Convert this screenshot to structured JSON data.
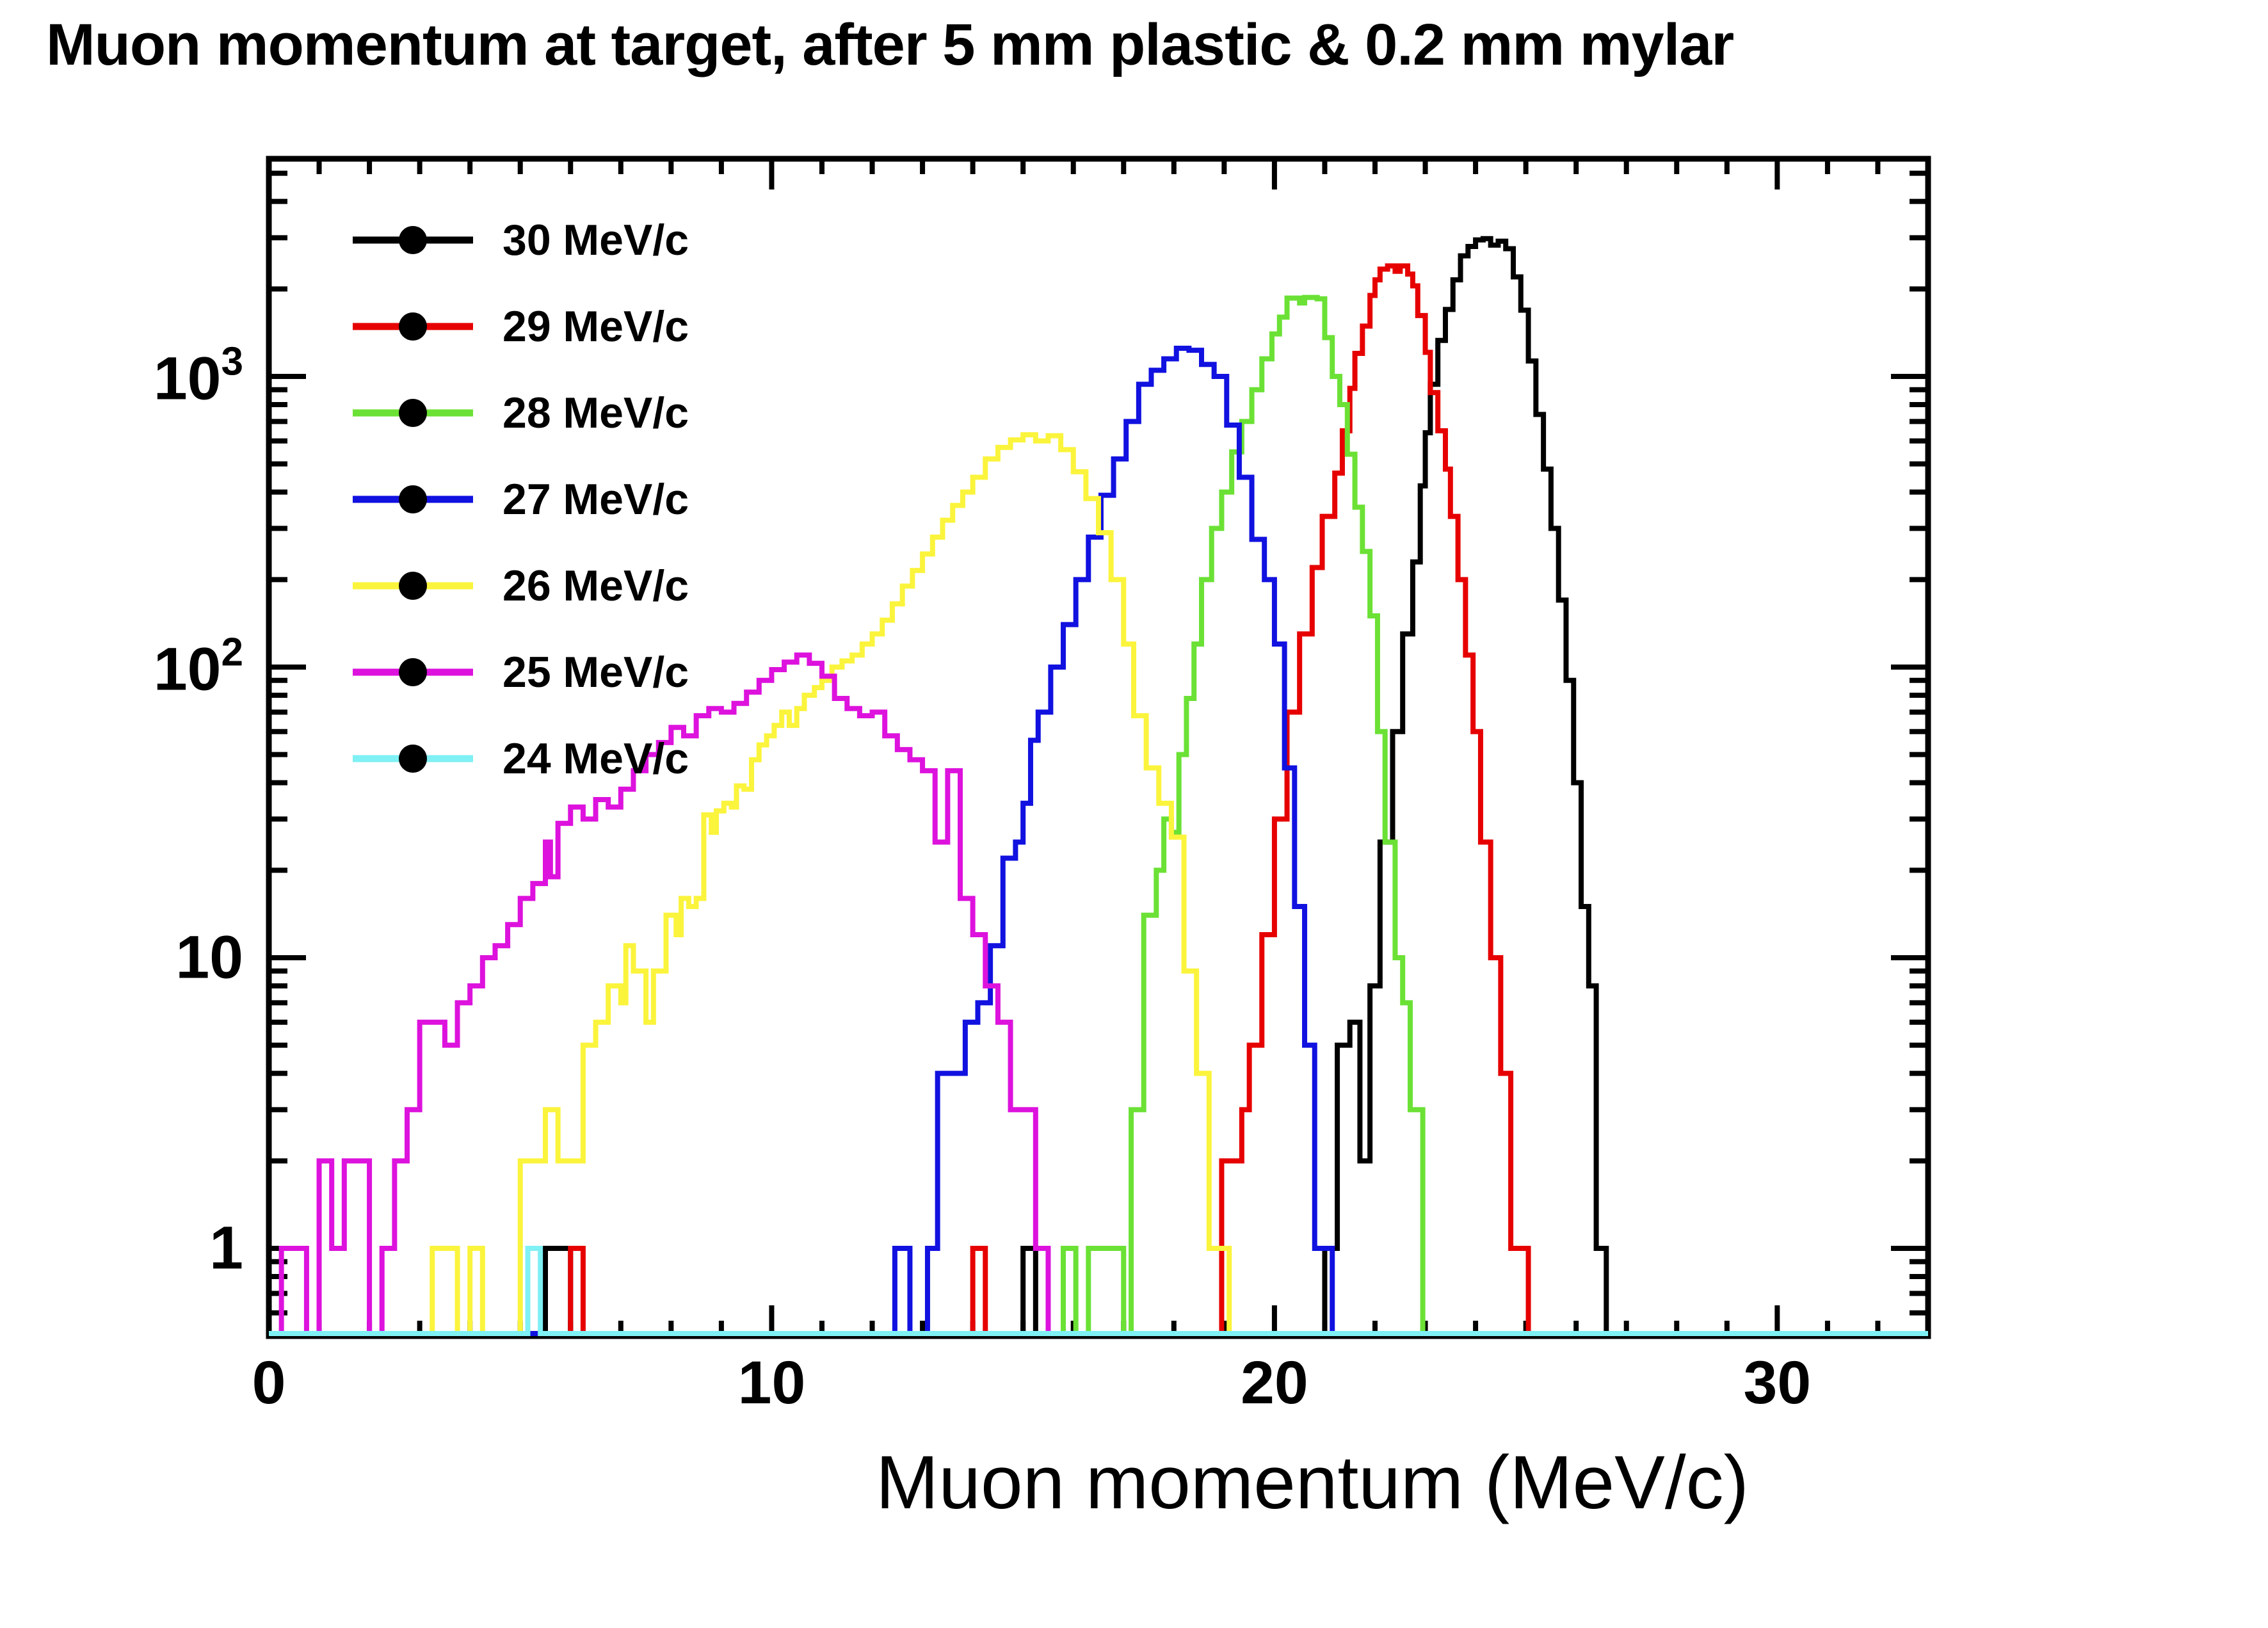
{
  "title": "Muon momentum at target, after 5 mm plastic & 0.2 mm mylar",
  "axes": {
    "x": {
      "title": "Muon momentum (MeV/c)",
      "min": 0,
      "max": 33,
      "ticks": [
        {
          "value": 0,
          "label": "0"
        },
        {
          "value": 10,
          "label": "10"
        },
        {
          "value": 20,
          "label": "20"
        },
        {
          "value": 30,
          "label": "30"
        }
      ]
    },
    "y": {
      "scale": "log",
      "min": 0.5,
      "max": 5600,
      "ticks": [
        {
          "value": 1000,
          "base": "10",
          "exp": "3"
        },
        {
          "value": 100,
          "base": "10",
          "exp": "2"
        },
        {
          "value": 10,
          "base": "10",
          "exp": ""
        },
        {
          "value": 1,
          "base": "1",
          "exp": ""
        }
      ]
    }
  },
  "legend": {
    "entries": [
      {
        "label": "30 MeV/c",
        "color": "#000000"
      },
      {
        "label": "29 MeV/c",
        "color": "#e60000"
      },
      {
        "label": "28 MeV/c",
        "color": "#6be135"
      },
      {
        "label": "27 MeV/c",
        "color": "#1111e0"
      },
      {
        "label": "26 MeV/c",
        "color": "#fbf43c"
      },
      {
        "label": "25 MeV/c",
        "color": "#dd12dd"
      },
      {
        "label": "24 MeV/c",
        "color": "#7ff0f4"
      }
    ]
  },
  "chart_data": {
    "type": "line",
    "subtype": "step-histogram",
    "title": "Muon momentum at target, after 5 mm plastic & 0.2 mm mylar",
    "xlabel": "Muon momentum (MeV/c)",
    "ylabel": "",
    "xlim": [
      0,
      33
    ],
    "ylim": [
      0.5,
      5600
    ],
    "yscale": "log",
    "grid": false,
    "legend_position": "top-left-inside",
    "bin_width_mevc": 0.25,
    "series": [
      {
        "name": "30 MeV/c",
        "color": "#000000",
        "steps": [
          [
            5.5,
            1
          ],
          [
            6.0,
            0
          ],
          [
            15.0,
            1
          ],
          [
            15.25,
            0
          ],
          [
            21.0,
            1
          ],
          [
            21.25,
            5
          ],
          [
            21.5,
            6
          ],
          [
            21.7,
            2
          ],
          [
            21.9,
            8
          ],
          [
            22.1,
            25
          ],
          [
            22.35,
            60
          ],
          [
            22.55,
            130
          ],
          [
            22.75,
            230
          ],
          [
            22.9,
            420
          ],
          [
            23.0,
            640
          ],
          [
            23.1,
            940
          ],
          [
            23.25,
            1330
          ],
          [
            23.4,
            1700
          ],
          [
            23.55,
            2150
          ],
          [
            23.7,
            2600
          ],
          [
            23.85,
            2800
          ],
          [
            24.0,
            2950
          ],
          [
            24.15,
            2980
          ],
          [
            24.3,
            2830
          ],
          [
            24.45,
            2920
          ],
          [
            24.6,
            2750
          ],
          [
            24.75,
            2200
          ],
          [
            24.9,
            1690
          ],
          [
            25.05,
            1130
          ],
          [
            25.2,
            740
          ],
          [
            25.35,
            480
          ],
          [
            25.5,
            300
          ],
          [
            25.65,
            170
          ],
          [
            25.8,
            90
          ],
          [
            25.95,
            40
          ],
          [
            26.1,
            15
          ],
          [
            26.25,
            8
          ],
          [
            26.4,
            1
          ],
          [
            26.6,
            0
          ]
        ]
      },
      {
        "name": "29 MeV/c",
        "color": "#e60000",
        "steps": [
          [
            6.0,
            1
          ],
          [
            6.25,
            0
          ],
          [
            14.0,
            1
          ],
          [
            14.25,
            0
          ],
          [
            18.95,
            2
          ],
          [
            19.2,
            2
          ],
          [
            19.35,
            3
          ],
          [
            19.5,
            5
          ],
          [
            19.75,
            12
          ],
          [
            20.0,
            30
          ],
          [
            20.25,
            70
          ],
          [
            20.5,
            130
          ],
          [
            20.75,
            220
          ],
          [
            20.95,
            330
          ],
          [
            21.2,
            465
          ],
          [
            21.35,
            650
          ],
          [
            21.5,
            910
          ],
          [
            21.6,
            1200
          ],
          [
            21.75,
            1490
          ],
          [
            21.9,
            1900
          ],
          [
            22.0,
            2150
          ],
          [
            22.1,
            2340
          ],
          [
            22.25,
            2400
          ],
          [
            22.4,
            2300
          ],
          [
            22.5,
            2400
          ],
          [
            22.65,
            2250
          ],
          [
            22.75,
            2050
          ],
          [
            22.85,
            1620
          ],
          [
            23.0,
            1210
          ],
          [
            23.1,
            880
          ],
          [
            23.25,
            650
          ],
          [
            23.4,
            480
          ],
          [
            23.5,
            330
          ],
          [
            23.65,
            200
          ],
          [
            23.8,
            110
          ],
          [
            23.95,
            60
          ],
          [
            24.1,
            25
          ],
          [
            24.3,
            10
          ],
          [
            24.5,
            4
          ],
          [
            24.7,
            1
          ],
          [
            25.05,
            0
          ]
        ]
      },
      {
        "name": "28 MeV/c",
        "color": "#6be135",
        "steps": [
          [
            15.8,
            1
          ],
          [
            16.05,
            0
          ],
          [
            16.3,
            1
          ],
          [
            16.55,
            1
          ],
          [
            16.8,
            1
          ],
          [
            17.0,
            0
          ],
          [
            17.15,
            3
          ],
          [
            17.4,
            14
          ],
          [
            17.65,
            20
          ],
          [
            17.8,
            30
          ],
          [
            17.95,
            27
          ],
          [
            18.1,
            50
          ],
          [
            18.25,
            78
          ],
          [
            18.4,
            120
          ],
          [
            18.55,
            200
          ],
          [
            18.75,
            300
          ],
          [
            18.95,
            400
          ],
          [
            19.15,
            550
          ],
          [
            19.35,
            700
          ],
          [
            19.55,
            900
          ],
          [
            19.75,
            1150
          ],
          [
            19.95,
            1400
          ],
          [
            20.1,
            1600
          ],
          [
            20.25,
            1860
          ],
          [
            20.5,
            1790
          ],
          [
            20.6,
            1870
          ],
          [
            20.85,
            1850
          ],
          [
            21.0,
            1360
          ],
          [
            21.15,
            1000
          ],
          [
            21.3,
            800
          ],
          [
            21.45,
            540
          ],
          [
            21.6,
            355
          ],
          [
            21.75,
            250
          ],
          [
            21.9,
            150
          ],
          [
            22.05,
            60
          ],
          [
            22.2,
            25
          ],
          [
            22.4,
            10
          ],
          [
            22.55,
            7
          ],
          [
            22.7,
            3
          ],
          [
            22.95,
            0
          ]
        ]
      },
      {
        "name": "27 MeV/c",
        "color": "#1111e0",
        "steps": [
          [
            12.45,
            1
          ],
          [
            12.75,
            0
          ],
          [
            13.1,
            1
          ],
          [
            13.3,
            4
          ],
          [
            13.6,
            4
          ],
          [
            13.85,
            6
          ],
          [
            14.1,
            7
          ],
          [
            14.35,
            11
          ],
          [
            14.6,
            22
          ],
          [
            14.85,
            25
          ],
          [
            15.0,
            34
          ],
          [
            15.15,
            56
          ],
          [
            15.3,
            70
          ],
          [
            15.55,
            100
          ],
          [
            15.8,
            140
          ],
          [
            16.05,
            200
          ],
          [
            16.3,
            280
          ],
          [
            16.55,
            390
          ],
          [
            16.8,
            520
          ],
          [
            17.05,
            700
          ],
          [
            17.3,
            940
          ],
          [
            17.55,
            1050
          ],
          [
            17.8,
            1150
          ],
          [
            18.05,
            1250
          ],
          [
            18.3,
            1230
          ],
          [
            18.55,
            1100
          ],
          [
            18.8,
            1000
          ],
          [
            19.05,
            680
          ],
          [
            19.3,
            450
          ],
          [
            19.55,
            275
          ],
          [
            19.8,
            200
          ],
          [
            20.0,
            120
          ],
          [
            20.2,
            45
          ],
          [
            20.4,
            15
          ],
          [
            20.6,
            5
          ],
          [
            20.8,
            1
          ],
          [
            21.15,
            0
          ]
        ]
      },
      {
        "name": "26 MeV/c",
        "color": "#fbf43c",
        "steps": [
          [
            3.25,
            1
          ],
          [
            3.75,
            0
          ],
          [
            4.0,
            1
          ],
          [
            4.25,
            0
          ],
          [
            5.0,
            2
          ],
          [
            5.5,
            3
          ],
          [
            5.75,
            2
          ],
          [
            6.25,
            5
          ],
          [
            6.5,
            6
          ],
          [
            6.75,
            8
          ],
          [
            7.0,
            7
          ],
          [
            7.1,
            11
          ],
          [
            7.25,
            9
          ],
          [
            7.5,
            6
          ],
          [
            7.65,
            9
          ],
          [
            7.9,
            14
          ],
          [
            8.1,
            12
          ],
          [
            8.2,
            16
          ],
          [
            8.35,
            15
          ],
          [
            8.5,
            16
          ],
          [
            8.65,
            31
          ],
          [
            8.8,
            27
          ],
          [
            8.9,
            32
          ],
          [
            9.05,
            34
          ],
          [
            9.2,
            33
          ],
          [
            9.3,
            39
          ],
          [
            9.45,
            38
          ],
          [
            9.6,
            48
          ],
          [
            9.75,
            54
          ],
          [
            9.9,
            58
          ],
          [
            10.05,
            63
          ],
          [
            10.2,
            70
          ],
          [
            10.35,
            63
          ],
          [
            10.5,
            72
          ],
          [
            10.65,
            80
          ],
          [
            10.85,
            85
          ],
          [
            11.0,
            90
          ],
          [
            11.2,
            100
          ],
          [
            11.4,
            105
          ],
          [
            11.6,
            110
          ],
          [
            11.8,
            120
          ],
          [
            12.0,
            130
          ],
          [
            12.2,
            145
          ],
          [
            12.4,
            165
          ],
          [
            12.6,
            190
          ],
          [
            12.8,
            215
          ],
          [
            13.0,
            245
          ],
          [
            13.2,
            280
          ],
          [
            13.4,
            320
          ],
          [
            13.6,
            360
          ],
          [
            13.8,
            400
          ],
          [
            14.0,
            450
          ],
          [
            14.25,
            520
          ],
          [
            14.5,
            570
          ],
          [
            14.75,
            605
          ],
          [
            15.0,
            630
          ],
          [
            15.25,
            600
          ],
          [
            15.5,
            625
          ],
          [
            15.75,
            560
          ],
          [
            16.0,
            470
          ],
          [
            16.25,
            380
          ],
          [
            16.5,
            290
          ],
          [
            16.75,
            200
          ],
          [
            17.0,
            120
          ],
          [
            17.2,
            68
          ],
          [
            17.45,
            45
          ],
          [
            17.7,
            34
          ],
          [
            17.95,
            26
          ],
          [
            18.2,
            9
          ],
          [
            18.45,
            4
          ],
          [
            18.7,
            1
          ],
          [
            19.1,
            0
          ]
        ]
      },
      {
        "name": "25 MeV/c",
        "color": "#dd12dd",
        "steps": [
          [
            0.25,
            1
          ],
          [
            0.75,
            0
          ],
          [
            1.0,
            2
          ],
          [
            1.25,
            1
          ],
          [
            1.5,
            2
          ],
          [
            2.0,
            0
          ],
          [
            2.25,
            1
          ],
          [
            2.5,
            2
          ],
          [
            2.75,
            3
          ],
          [
            3.0,
            6
          ],
          [
            3.5,
            5
          ],
          [
            3.75,
            7
          ],
          [
            4.0,
            8
          ],
          [
            4.25,
            10
          ],
          [
            4.5,
            11
          ],
          [
            4.75,
            13
          ],
          [
            5.0,
            16
          ],
          [
            5.25,
            18
          ],
          [
            5.5,
            25
          ],
          [
            5.6,
            19
          ],
          [
            5.75,
            29
          ],
          [
            6.0,
            33
          ],
          [
            6.25,
            30
          ],
          [
            6.5,
            35
          ],
          [
            6.75,
            33
          ],
          [
            7.0,
            38
          ],
          [
            7.25,
            44
          ],
          [
            7.5,
            50
          ],
          [
            7.75,
            55
          ],
          [
            8.0,
            62
          ],
          [
            8.25,
            58
          ],
          [
            8.5,
            68
          ],
          [
            8.75,
            72
          ],
          [
            9.0,
            70
          ],
          [
            9.25,
            75
          ],
          [
            9.5,
            82
          ],
          [
            9.75,
            90
          ],
          [
            10.0,
            98
          ],
          [
            10.25,
            104
          ],
          [
            10.5,
            110
          ],
          [
            10.75,
            103
          ],
          [
            11.0,
            93
          ],
          [
            11.25,
            78
          ],
          [
            11.5,
            72
          ],
          [
            11.75,
            68
          ],
          [
            12.0,
            70
          ],
          [
            12.25,
            58
          ],
          [
            12.5,
            52
          ],
          [
            12.75,
            48
          ],
          [
            13.0,
            44
          ],
          [
            13.25,
            25
          ],
          [
            13.5,
            44
          ],
          [
            13.75,
            16
          ],
          [
            14.0,
            12
          ],
          [
            14.25,
            8
          ],
          [
            14.5,
            6
          ],
          [
            14.75,
            3
          ],
          [
            15.25,
            1
          ],
          [
            15.5,
            0
          ]
        ]
      },
      {
        "name": "24 MeV/c",
        "color": "#7ff0f4",
        "steps": [
          [
            5.15,
            1
          ],
          [
            5.4,
            0
          ]
        ]
      }
    ]
  }
}
